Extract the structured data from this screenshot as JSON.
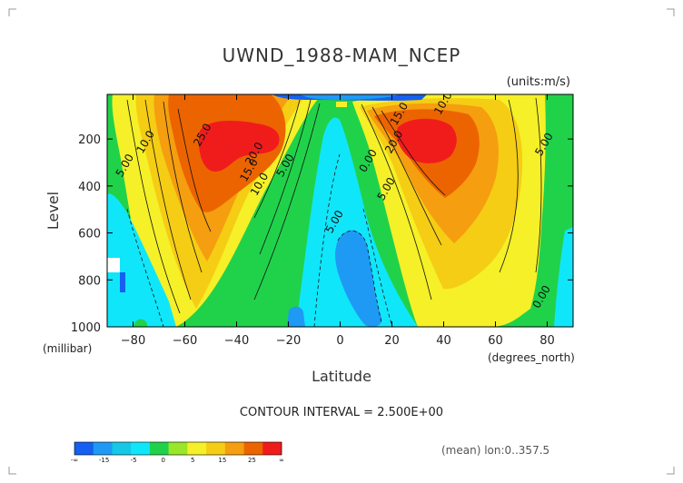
{
  "chart_data": {
    "type": "heatmap",
    "title": "UWND_1988-MAM_NCEP",
    "units_label": "(units:m/s)",
    "xlabel": "Latitude",
    "ylabel": "Level",
    "x_unit_label": "(degrees_north)",
    "y_unit_label": "(millibar)",
    "xlim": [
      -90,
      90
    ],
    "ylim": [
      1000,
      10
    ],
    "x_ticks": [
      -80,
      -60,
      -40,
      -20,
      0,
      20,
      40,
      60,
      80
    ],
    "x_tick_labels": [
      "−80",
      "−60",
      "−40",
      "−20",
      "0",
      "20",
      "40",
      "60",
      "80"
    ],
    "y_ticks": [
      200,
      400,
      600,
      800,
      1000
    ],
    "y_tick_labels": [
      "200",
      "400",
      "600",
      "800",
      "1000"
    ],
    "contour_interval_text": "CONTOUR INTERVAL = 2.500E+00",
    "info_text": "(mean) lon:0..357.5",
    "contour_labels": [
      {
        "text": "25.0",
        "lat": -52,
        "p": 190
      },
      {
        "text": "20.0",
        "lat": -32,
        "p": 270
      },
      {
        "text": "15.0",
        "lat": -34,
        "p": 340
      },
      {
        "text": "10.0",
        "lat": -30,
        "p": 400
      },
      {
        "text": "5.00",
        "lat": -20,
        "p": 320
      },
      {
        "text": "10.0",
        "lat": -74,
        "p": 220
      },
      {
        "text": "5.00",
        "lat": -82,
        "p": 320
      },
      {
        "text": "15.0",
        "lat": 24,
        "p": 100
      },
      {
        "text": "10.0",
        "lat": 41,
        "p": 55
      },
      {
        "text": "20.0",
        "lat": 22,
        "p": 220
      },
      {
        "text": "0.00",
        "lat": 12,
        "p": 300
      },
      {
        "text": "5.00",
        "lat": 19,
        "p": 420
      },
      {
        "text": "5.00",
        "lat": 80,
        "p": 230
      },
      {
        "text": "5.00",
        "lat": -1,
        "p": 560
      },
      {
        "text": "0.00",
        "lat": 79,
        "p": 880
      }
    ],
    "colorbar": {
      "colors": [
        "#1560f0",
        "#1e9af5",
        "#14c8e6",
        "#10e6fa",
        "#20d24a",
        "#9ae628",
        "#f5f028",
        "#f5cd14",
        "#f59e0f",
        "#ec6400",
        "#f01c1c"
      ],
      "tick_labels": [
        "-∞",
        "-15",
        "-5",
        "0",
        "5",
        "15",
        "25",
        "∞"
      ]
    }
  }
}
